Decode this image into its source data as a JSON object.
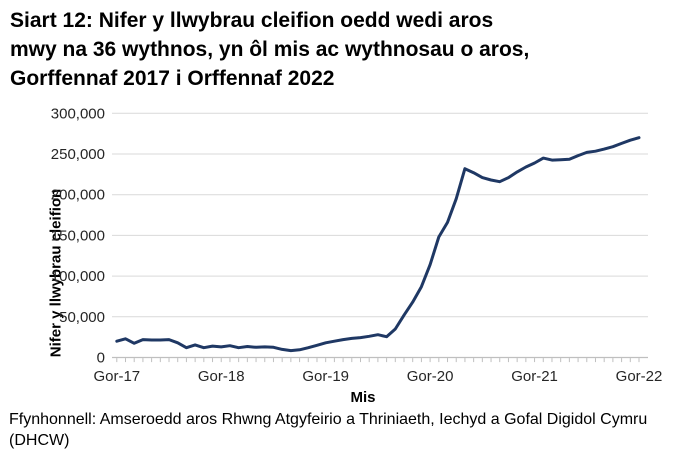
{
  "title_lines": [
    "Siart 12: Nifer y llwybrau cleifion oedd wedi aros",
    "mwy na 36 wythnos, yn ôl mis ac wythnosau o aros,",
    "Gorffennaf 2017 i Orffennaf 2022"
  ],
  "source_lines": [
    "Ffynhonnell: Amseroedd aros Rhwng Atgyfeirio a Thriniaeth, Iechyd a Gofal Digidol Cymru",
    "(DHCW)"
  ],
  "colors": {
    "line": "#1f3864",
    "grid": "#d9d9d9",
    "axis": "#bfbfbf",
    "tick_text": "#262626"
  },
  "chart_data": {
    "type": "line",
    "title": "Siart 12: Nifer y llwybrau cleifion oedd wedi aros mwy na 36 wythnos, yn ôl mis ac wythnosau o aros, Gorffennaf 2017 i Orffennaf 2022",
    "xlabel": "Mis",
    "ylabel": "Nifer y llwybrau cleifion",
    "ylim": [
      0,
      300000
    ],
    "grid": true,
    "legend": false,
    "y_ticks": [
      0,
      50000,
      100000,
      150000,
      200000,
      250000,
      300000
    ],
    "y_tick_labels": [
      "0",
      "50,000",
      "100,000",
      "150,000",
      "200,000",
      "250,000",
      "300,000"
    ],
    "x_tick_labels": [
      "Gor-17",
      "Gor-18",
      "Gor-19",
      "Gor-20",
      "Gor-21",
      "Gor-22"
    ],
    "categories": [
      "2017-07",
      "2017-08",
      "2017-09",
      "2017-10",
      "2017-11",
      "2017-12",
      "2018-01",
      "2018-02",
      "2018-03",
      "2018-04",
      "2018-05",
      "2018-06",
      "2018-07",
      "2018-08",
      "2018-09",
      "2018-10",
      "2018-11",
      "2018-12",
      "2019-01",
      "2019-02",
      "2019-03",
      "2019-04",
      "2019-05",
      "2019-06",
      "2019-07",
      "2019-08",
      "2019-09",
      "2019-10",
      "2019-11",
      "2019-12",
      "2020-01",
      "2020-02",
      "2020-03",
      "2020-04",
      "2020-05",
      "2020-06",
      "2020-07",
      "2020-08",
      "2020-09",
      "2020-10",
      "2020-11",
      "2020-12",
      "2021-01",
      "2021-02",
      "2021-03",
      "2021-04",
      "2021-05",
      "2021-06",
      "2021-07",
      "2021-08",
      "2021-09",
      "2021-10",
      "2021-11",
      "2021-12",
      "2022-01",
      "2022-02",
      "2022-03",
      "2022-04",
      "2022-05",
      "2022-06",
      "2022-07"
    ],
    "values": [
      20000,
      23000,
      17500,
      22000,
      21500,
      21500,
      22000,
      18000,
      12000,
      15500,
      12000,
      14000,
      13000,
      14500,
      12000,
      13500,
      12500,
      13000,
      12500,
      10000,
      8500,
      9500,
      12000,
      15000,
      18000,
      20000,
      22000,
      23500,
      24500,
      26000,
      28000,
      25500,
      35000,
      52000,
      68000,
      87000,
      114000,
      148000,
      166000,
      195000,
      232000,
      227000,
      221000,
      218000,
      216000,
      221000,
      228000,
      234000,
      239000,
      245000,
      242500,
      243000,
      243500,
      248000,
      252000,
      253500,
      256000,
      259000,
      263000,
      267000,
      270000
    ]
  }
}
